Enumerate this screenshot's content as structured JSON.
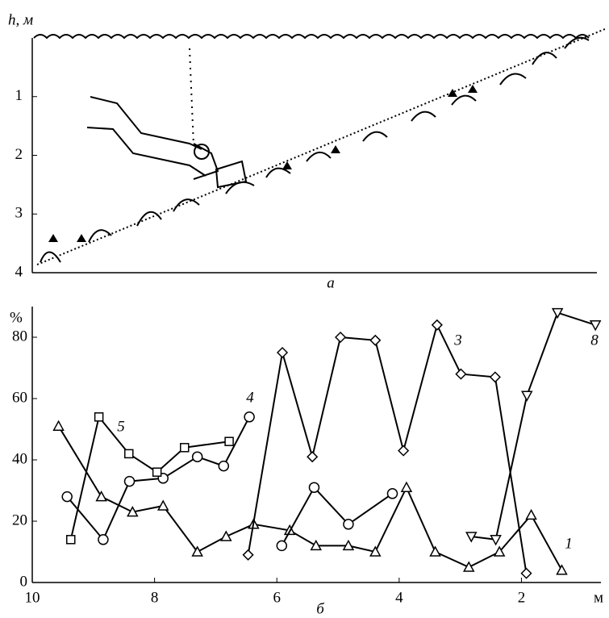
{
  "chart_data": [
    {
      "type": "diagram",
      "ylabel": "h, м",
      "ylim": [
        0,
        4
      ],
      "yticks": [
        1,
        2,
        3,
        4
      ],
      "caption": "а"
    },
    {
      "type": "line",
      "ylabel": "%",
      "xlabel": "м",
      "caption": "б",
      "xlim": [
        10,
        0.7
      ],
      "xticks": [
        10,
        8,
        6,
        4,
        2
      ],
      "ylim": [
        0,
        90
      ],
      "yticks": [
        0,
        20,
        40,
        60,
        80
      ],
      "series": [
        {
          "name": "1",
          "marker": "triangle",
          "color": "#000000",
          "x": [
            9.57,
            8.87,
            8.36,
            7.86,
            7.3,
            6.83,
            6.38,
            5.79,
            5.36,
            4.83,
            4.39,
            3.88,
            3.41,
            2.86,
            2.36,
            1.84,
            1.34
          ],
          "values": [
            51,
            28,
            23,
            25,
            10,
            15,
            19,
            17,
            12,
            12,
            10,
            31,
            10,
            5,
            10,
            22,
            4
          ]
        },
        {
          "name": "3",
          "marker": "diamond",
          "color": "#000000",
          "x": [
            6.47,
            5.91,
            5.42,
            4.96,
            4.39,
            3.93,
            3.38,
            2.99,
            2.43,
            1.92
          ],
          "values": [
            9,
            75,
            41,
            80,
            79,
            43,
            84,
            68,
            67,
            3
          ]
        },
        {
          "name": "4",
          "marker": "circle",
          "color": "#000000",
          "x": [
            9.43,
            8.84,
            8.41,
            7.86,
            7.3,
            6.87,
            6.45
          ],
          "values": [
            28,
            14,
            33,
            34,
            41,
            38,
            54
          ]
        },
        {
          "marker": "circle",
          "color": "#000000",
          "x": [
            5.92,
            5.39,
            4.83,
            4.11
          ],
          "values": [
            12,
            31,
            19,
            29
          ]
        },
        {
          "name": "5",
          "marker": "square",
          "color": "#000000",
          "x": [
            9.37,
            8.91,
            8.42,
            7.96,
            7.51,
            6.78
          ],
          "values": [
            14,
            54,
            42,
            36,
            44,
            46
          ]
        },
        {
          "name": "8",
          "marker": "triangle-down",
          "color": "#000000",
          "x": [
            2.82,
            2.42,
            1.91,
            1.41,
            0.79
          ],
          "values": [
            15,
            14,
            61,
            88,
            84
          ]
        }
      ]
    }
  ]
}
